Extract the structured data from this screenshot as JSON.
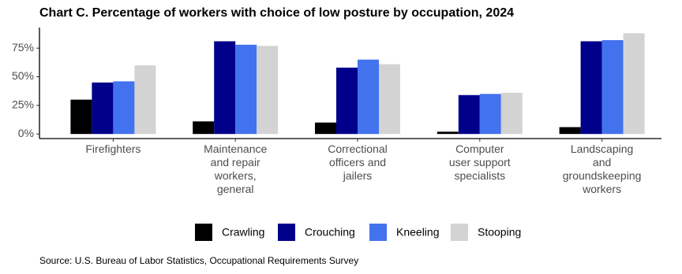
{
  "chart_data": {
    "type": "bar",
    "title": "Chart C. Percentage of workers with choice of low posture by occupation,  2024",
    "categories": [
      "Firefighters",
      "Maintenance and repair workers, general",
      "Correctional officers and jailers",
      "Computer user support specialists",
      "Landscaping and groundskeeping workers"
    ],
    "series": [
      {
        "name": "Crawling",
        "color": "#000000",
        "values": [
          30,
          11,
          10,
          2,
          6
        ]
      },
      {
        "name": "Crouching",
        "color": "#00008b",
        "values": [
          45,
          81,
          58,
          34,
          81
        ]
      },
      {
        "name": "Kneeling",
        "color": "#4372ee",
        "values": [
          46,
          78,
          65,
          35,
          82
        ]
      },
      {
        "name": "Stooping",
        "color": "#d3d3d3",
        "values": [
          60,
          77,
          61,
          36,
          88
        ]
      }
    ],
    "ylim": [
      -4,
      93
    ],
    "yticks": [
      {
        "value": 0,
        "label": "0%"
      },
      {
        "value": 25,
        "label": "25%"
      },
      {
        "value": 50,
        "label": "50%"
      },
      {
        "value": 75,
        "label": "75%"
      }
    ],
    "legend": "bottom",
    "source": "Source: U.S. Bureau of Labor Statistics, Occupational Requirements Survey"
  }
}
